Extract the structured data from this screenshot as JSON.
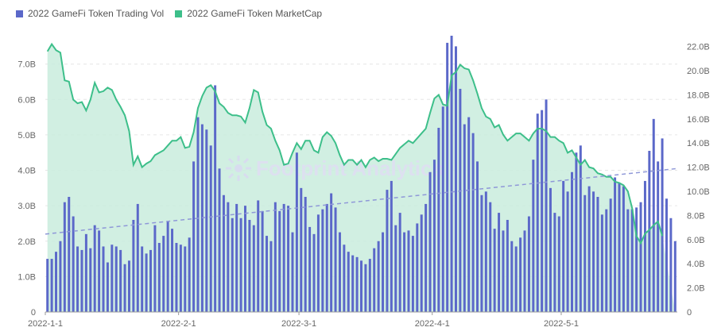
{
  "legend": {
    "vol_label": "2022 GameFi Token Trading Vol",
    "cap_label": "2022 GameFi Token MarketCap"
  },
  "watermark": "Footprint Analytics",
  "colors": {
    "bar": "#5b68c9",
    "bar_highlight": "#6a5acd",
    "line": "#3dbf8a",
    "area": "#c9ecdd",
    "trend": "#8f98d8",
    "grid": "#e6e6e6",
    "axis_text": "#666666"
  },
  "chart_data": {
    "type": "bar",
    "x_ticks": [
      {
        "label": "2022-1-1",
        "index": 0
      },
      {
        "label": "2022-2-1",
        "index": 31
      },
      {
        "label": "2022-3-1",
        "index": 59
      },
      {
        "label": "2022-4-1",
        "index": 90
      },
      {
        "label": "2022-5-1",
        "index": 120
      }
    ],
    "y_left": {
      "ticks": [
        "0",
        "1.0B",
        "2.0B",
        "3.0B",
        "4.0B",
        "5.0B",
        "6.0B",
        "7.0B"
      ],
      "range": [
        0,
        7.8
      ]
    },
    "y_right": {
      "ticks": [
        "0",
        "2.0B",
        "4.0B",
        "6.0B",
        "8.0B",
        "10.0B",
        "12.0B",
        "14.0B",
        "16.0B",
        "18.0B",
        "20.0B",
        "22.0B"
      ],
      "range": [
        0,
        22.9
      ]
    },
    "series": [
      {
        "name": "2022 GameFi Token Trading Vol",
        "axis": "left",
        "values": [
          1.5,
          1.5,
          1.7,
          2.0,
          3.1,
          3.25,
          2.7,
          1.85,
          1.75,
          2.2,
          1.8,
          2.45,
          2.3,
          1.85,
          1.4,
          1.9,
          1.85,
          1.75,
          1.35,
          1.45,
          2.6,
          3.05,
          1.85,
          1.65,
          1.75,
          2.45,
          1.95,
          2.15,
          2.55,
          2.35,
          1.95,
          1.9,
          1.85,
          2.1,
          4.25,
          5.5,
          5.3,
          5.15,
          4.7,
          6.4,
          4.05,
          3.3,
          3.1,
          2.65,
          3.05,
          2.65,
          3.0,
          2.6,
          2.45,
          3.15,
          2.85,
          2.15,
          2.0,
          3.1,
          2.85,
          3.05,
          3.0,
          2.25,
          4.5,
          3.5,
          3.25,
          2.4,
          2.2,
          2.75,
          2.9,
          3.05,
          3.35,
          2.95,
          2.25,
          1.9,
          1.7,
          1.6,
          1.55,
          1.45,
          1.35,
          1.5,
          1.8,
          2.0,
          2.25,
          3.45,
          3.7,
          2.45,
          2.8,
          2.25,
          2.3,
          2.15,
          2.5,
          2.75,
          3.05,
          3.95,
          4.3,
          5.2,
          5.8,
          7.6,
          7.8,
          7.5,
          6.3,
          5.3,
          5.5,
          5.05,
          4.25,
          3.3,
          3.4,
          3.1,
          2.35,
          2.8,
          2.3,
          2.6,
          2.0,
          1.85,
          2.1,
          2.3,
          2.7,
          4.3,
          5.6,
          5.7,
          6.0,
          3.5,
          2.8,
          2.7,
          3.7,
          3.4,
          3.95,
          4.5,
          4.7,
          3.3,
          3.55,
          3.4,
          3.25,
          2.75,
          2.9,
          3.2,
          3.8,
          3.65,
          3.55,
          2.9,
          2.9,
          2.95,
          3.1,
          3.7,
          4.55,
          5.45,
          4.25,
          4.9,
          3.2,
          2.65,
          2.0
        ]
      },
      {
        "name": "2022 GameFi Token MarketCap",
        "axis": "right",
        "values": [
          21.6,
          22.2,
          21.7,
          21.5,
          19.2,
          19.1,
          17.6,
          17.3,
          17.4,
          16.7,
          17.6,
          19.0,
          18.2,
          18.3,
          18.6,
          18.4,
          17.6,
          17.0,
          16.3,
          15.0,
          12.2,
          12.9,
          12.0,
          12.3,
          12.5,
          13.0,
          13.2,
          13.4,
          13.8,
          14.2,
          14.2,
          14.5,
          13.6,
          13.7,
          14.9,
          16.9,
          17.9,
          18.6,
          18.8,
          18.3,
          17.3,
          17.0,
          16.5,
          16.3,
          16.3,
          16.2,
          15.7,
          16.9,
          18.4,
          18.2,
          16.6,
          15.5,
          15.2,
          14.2,
          13.4,
          12.2,
          12.3,
          13.2,
          14.0,
          13.5,
          14.2,
          14.2,
          13.4,
          13.2,
          14.5,
          14.9,
          14.6,
          14.0,
          13.0,
          12.2,
          12.6,
          12.6,
          12.2,
          12.6,
          12.0,
          12.6,
          12.8,
          12.5,
          12.7,
          12.7,
          12.6,
          13.1,
          13.6,
          13.9,
          14.2,
          14.0,
          14.4,
          14.8,
          15.2,
          16.5,
          17.7,
          18.0,
          17.2,
          17.1,
          19.6,
          19.9,
          20.5,
          20.2,
          20.1,
          19.2,
          18.1,
          16.9,
          16.2,
          16.0,
          15.3,
          15.5,
          14.7,
          14.2,
          14.5,
          14.8,
          14.8,
          14.5,
          14.2,
          14.8,
          15.2,
          15.2,
          15.0,
          14.5,
          14.5,
          14.2,
          14.0,
          13.2,
          13.4,
          12.8,
          12.2,
          12.6,
          12.0,
          11.9,
          11.5,
          11.4,
          11.2,
          11.2,
          10.8,
          10.7,
          10.5,
          10.0,
          8.6,
          6.3,
          5.7,
          6.5,
          6.8,
          7.2,
          7.5,
          6.3
        ]
      }
    ],
    "trend": {
      "axis": "left",
      "start": 2.2,
      "end": 4.05
    },
    "grid": true,
    "legend_position": "top-left"
  }
}
